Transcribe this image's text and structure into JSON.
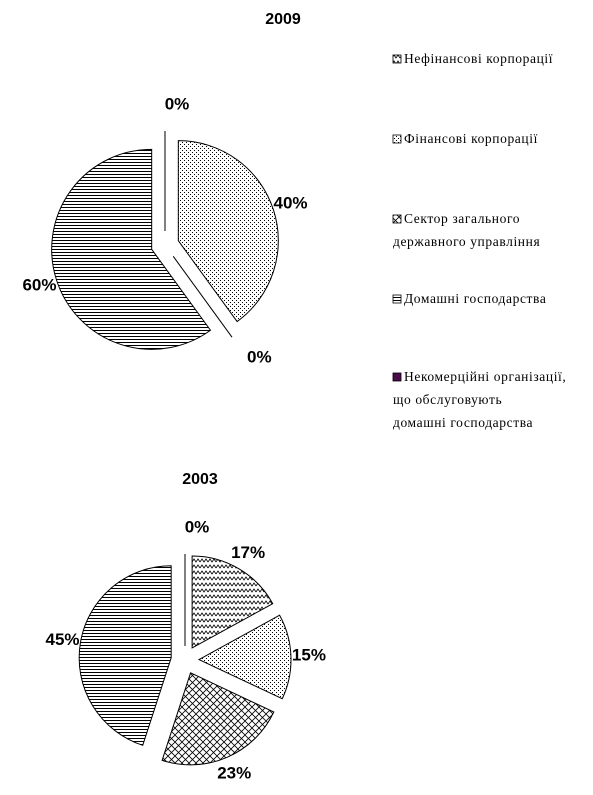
{
  "chart_data": [
    {
      "type": "pie",
      "title": "2009",
      "categories": [
        "Нефінансові корпорації",
        "Фінансові корпорації",
        "Сектор загального\nдержавного управління",
        "Домашні господарства",
        "Некомерційні організації,\nщо обслуговують\nдомашні господарства"
      ],
      "values": [
        0,
        40,
        0,
        60,
        0
      ],
      "value_labels": [
        "0%",
        "40%",
        "0%",
        "60%",
        null
      ]
    },
    {
      "type": "pie",
      "title": "2003",
      "values": [
        17,
        15,
        23,
        45,
        0
      ],
      "value_labels": [
        "17%",
        "15%",
        "23%",
        "45%",
        "0%"
      ]
    }
  ]
}
